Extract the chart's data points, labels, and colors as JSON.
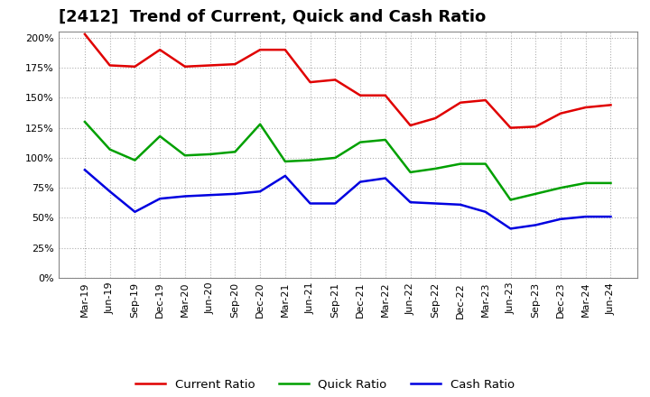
{
  "title": "[2412]  Trend of Current, Quick and Cash Ratio",
  "labels": [
    "Mar-19",
    "Jun-19",
    "Sep-19",
    "Dec-19",
    "Mar-20",
    "Jun-20",
    "Sep-20",
    "Dec-20",
    "Mar-21",
    "Jun-21",
    "Sep-21",
    "Dec-21",
    "Mar-22",
    "Jun-22",
    "Sep-22",
    "Dec-22",
    "Mar-23",
    "Jun-23",
    "Sep-23",
    "Dec-23",
    "Mar-24",
    "Jun-24"
  ],
  "current_ratio": [
    2.03,
    1.77,
    1.76,
    1.9,
    1.76,
    1.77,
    1.78,
    1.9,
    1.9,
    1.63,
    1.65,
    1.52,
    1.52,
    1.27,
    1.33,
    1.46,
    1.48,
    1.25,
    1.26,
    1.37,
    1.42,
    1.44
  ],
  "quick_ratio": [
    1.3,
    1.07,
    0.98,
    1.18,
    1.02,
    1.03,
    1.05,
    1.28,
    0.97,
    0.98,
    1.0,
    1.13,
    1.15,
    0.88,
    0.91,
    0.95,
    0.95,
    0.65,
    0.7,
    0.75,
    0.79,
    0.79
  ],
  "cash_ratio": [
    0.9,
    0.72,
    0.55,
    0.66,
    0.68,
    0.69,
    0.7,
    0.72,
    0.85,
    0.62,
    0.62,
    0.8,
    0.83,
    0.63,
    0.62,
    0.61,
    0.55,
    0.41,
    0.44,
    0.49,
    0.51,
    0.51
  ],
  "current_color": "#e00000",
  "quick_color": "#00a000",
  "cash_color": "#0000e0",
  "ylim": [
    0.0,
    2.05
  ],
  "yticks": [
    0.0,
    0.25,
    0.5,
    0.75,
    1.0,
    1.25,
    1.5,
    1.75,
    2.0
  ],
  "bg_color": "#ffffff",
  "plot_bg_color": "#ffffff",
  "grid_color": "#b0b0b0",
  "linewidth": 1.8,
  "title_fontsize": 13,
  "legend_fontsize": 9.5,
  "tick_fontsize": 8
}
